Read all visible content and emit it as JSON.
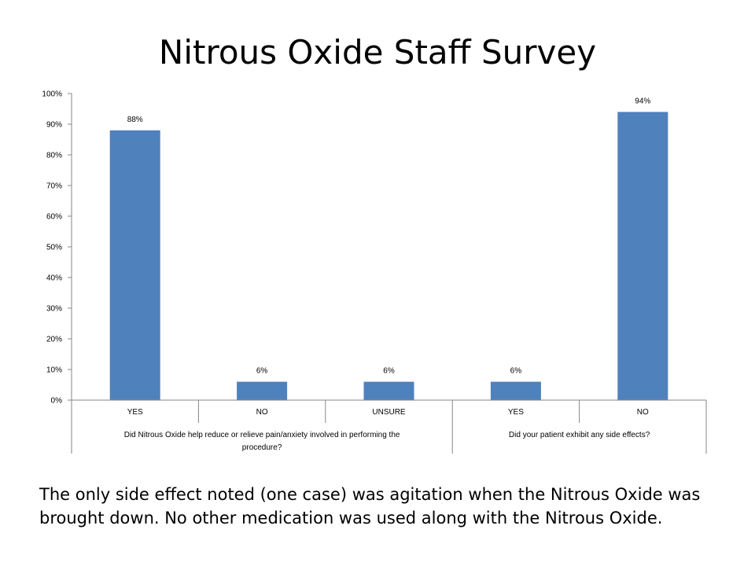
{
  "slide": {
    "title": "Nitrous Oxide Staff Survey",
    "caption": "The only side effect noted (one case) was agitation when the Nitrous Oxide was brought down.  No other medication was used along with the Nitrous Oxide."
  },
  "chart_data": {
    "type": "bar",
    "title": "",
    "xlabel": "",
    "ylabel": "",
    "ylim": [
      0,
      100
    ],
    "y_ticks": [
      "0%",
      "10%",
      "20%",
      "30%",
      "40%",
      "50%",
      "60%",
      "70%",
      "80%",
      "90%",
      "100%"
    ],
    "y_tick_values": [
      0,
      10,
      20,
      30,
      40,
      50,
      60,
      70,
      80,
      90,
      100
    ],
    "categories": [
      "YES",
      "NO",
      "UNSURE",
      "YES",
      "NO"
    ],
    "values": [
      88,
      6,
      6,
      6,
      94
    ],
    "data_labels": [
      "88%",
      "6%",
      "6%",
      "6%",
      "94%"
    ],
    "groups": [
      {
        "label": "Did Nitrous Oxide help reduce or relieve pain/anxiety involved in performing the procedure?",
        "label_lines": [
          "Did Nitrous Oxide help reduce or relieve pain/anxiety involved in performing the",
          "procedure?"
        ],
        "categories": [
          0,
          1,
          2
        ]
      },
      {
        "label": "Did your patient exhibit any side effects?",
        "label_lines": [
          "Did your patient exhibit any side effects?"
        ],
        "categories": [
          3,
          4
        ]
      }
    ],
    "bar_color": "#4F81BD",
    "grid": false,
    "legend": "none"
  }
}
